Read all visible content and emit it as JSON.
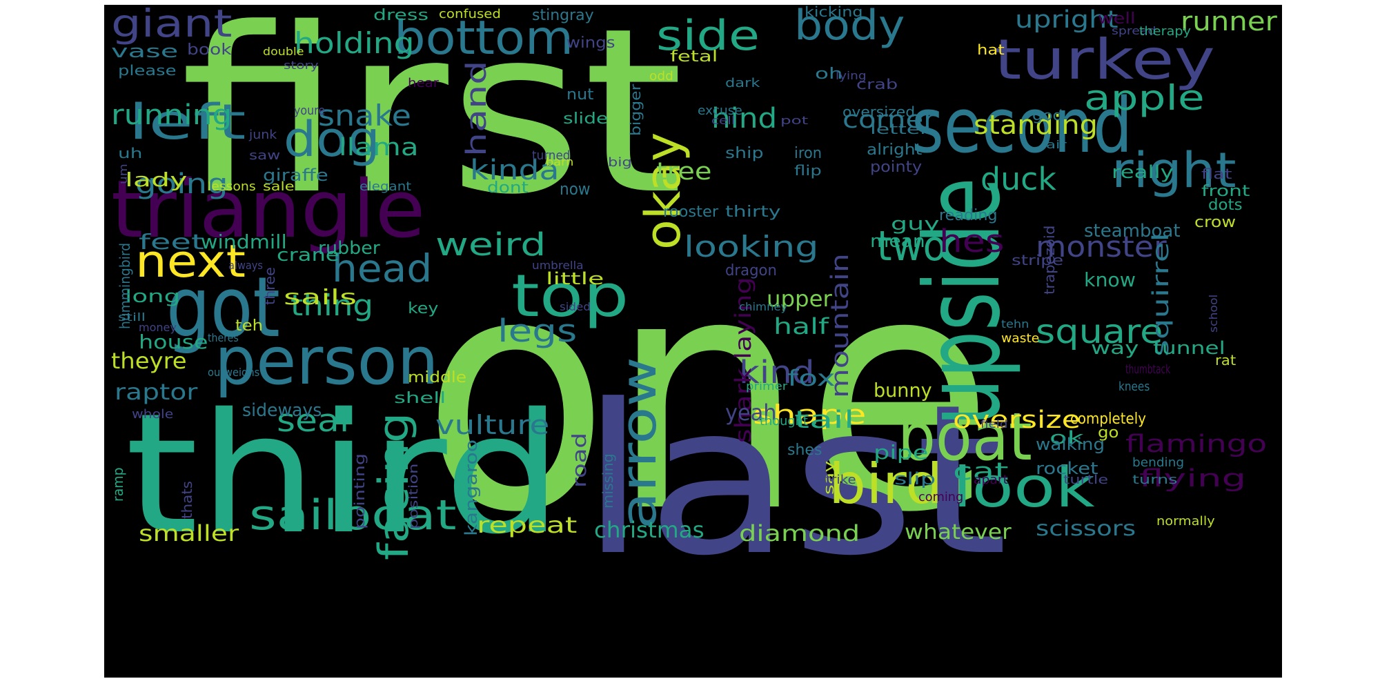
{
  "image": {
    "background_color": "#000000",
    "palette": "viridis"
  },
  "words": [
    {
      "text": "first",
      "color": "#7ad151"
    },
    {
      "text": "one",
      "color": "#7ad151"
    },
    {
      "text": "third",
      "color": "#22a884"
    },
    {
      "text": "last",
      "color": "#414487"
    },
    {
      "text": "triangle",
      "color": "#440154"
    },
    {
      "text": "second",
      "color": "#2a788e"
    },
    {
      "text": "turkey",
      "color": "#414487"
    },
    {
      "text": "got",
      "color": "#2a788e"
    },
    {
      "text": "person",
      "color": "#2a788e"
    },
    {
      "text": "upside",
      "color": "#22a884"
    },
    {
      "text": "boat",
      "color": "#7ad151"
    },
    {
      "text": "look",
      "color": "#22a884"
    },
    {
      "text": "bird",
      "color": "#bddf26"
    },
    {
      "text": "arrow",
      "color": "#2a788e"
    },
    {
      "text": "top",
      "color": "#22a884"
    },
    {
      "text": "bottom",
      "color": "#2a788e"
    },
    {
      "text": "side",
      "color": "#22a884"
    },
    {
      "text": "body",
      "color": "#2a788e"
    },
    {
      "text": "giant",
      "color": "#414487"
    },
    {
      "text": "left",
      "color": "#2a788e"
    },
    {
      "text": "dog",
      "color": "#2a788e"
    },
    {
      "text": "right",
      "color": "#2a788e"
    },
    {
      "text": "next",
      "color": "#fde725"
    },
    {
      "text": "okay",
      "color": "#bddf26"
    },
    {
      "text": "head",
      "color": "#2a788e"
    },
    {
      "text": "two",
      "color": "#22a884"
    },
    {
      "text": "sailboat",
      "color": "#22a884"
    },
    {
      "text": "facing",
      "color": "#22a884"
    },
    {
      "text": "weird",
      "color": "#22a884"
    },
    {
      "text": "apple",
      "color": "#22a884"
    },
    {
      "text": "holding",
      "color": "#22a884"
    },
    {
      "text": "square",
      "color": "#22a884"
    },
    {
      "text": "snake",
      "color": "#2a788e"
    },
    {
      "text": "hand",
      "color": "#414487"
    },
    {
      "text": "kinda",
      "color": "#2a788e"
    },
    {
      "text": "looking",
      "color": "#2a788e"
    },
    {
      "text": "monster",
      "color": "#414487"
    },
    {
      "text": "hes",
      "color": "#440154"
    },
    {
      "text": "duck",
      "color": "#22a884"
    },
    {
      "text": "legs",
      "color": "#2a788e"
    },
    {
      "text": "kind",
      "color": "#414487"
    },
    {
      "text": "seal",
      "color": "#22a884"
    },
    {
      "text": "thing",
      "color": "#22a884"
    },
    {
      "text": "running",
      "color": "#22a884"
    },
    {
      "text": "going",
      "color": "#2a788e"
    },
    {
      "text": "standing",
      "color": "#bddf26"
    },
    {
      "text": "runner",
      "color": "#7ad151"
    },
    {
      "text": "upright",
      "color": "#2a788e"
    },
    {
      "text": "hind",
      "color": "#22a884"
    },
    {
      "text": "corner",
      "color": "#2a788e"
    },
    {
      "text": "tree",
      "color": "#7ad151"
    },
    {
      "text": "llama",
      "color": "#22a884"
    },
    {
      "text": "shape",
      "color": "#fde725"
    },
    {
      "text": "tail",
      "color": "#22a884"
    },
    {
      "text": "oversize",
      "color": "#fde725"
    },
    {
      "text": "flamingo",
      "color": "#440154"
    },
    {
      "text": "vulture",
      "color": "#2a788e"
    },
    {
      "text": "cat",
      "color": "#22a884"
    },
    {
      "text": "flying",
      "color": "#440154"
    },
    {
      "text": "diamond",
      "color": "#7ad151"
    },
    {
      "text": "smaller",
      "color": "#bddf26"
    },
    {
      "text": "repeat",
      "color": "#bddf26"
    },
    {
      "text": "christmas",
      "color": "#22a884"
    },
    {
      "text": "whatever",
      "color": "#7ad151"
    },
    {
      "text": "scissors",
      "color": "#2a788e"
    },
    {
      "text": "mountain",
      "color": "#414487"
    },
    {
      "text": "shark laying",
      "color": "#440154"
    },
    {
      "text": "squirrel",
      "color": "#2a788e"
    },
    {
      "text": "fox",
      "color": "#2a788e"
    },
    {
      "text": "half",
      "color": "#22a884"
    },
    {
      "text": "upper",
      "color": "#7ad151"
    },
    {
      "text": "raptor",
      "color": "#2a788e"
    },
    {
      "text": "theyre",
      "color": "#bddf26"
    },
    {
      "text": "house",
      "color": "#22a884"
    },
    {
      "text": "sideways",
      "color": "#2a788e"
    },
    {
      "text": "sails",
      "color": "#bddf26"
    },
    {
      "text": "feet",
      "color": "#2a788e"
    },
    {
      "text": "windmill",
      "color": "#22a884"
    },
    {
      "text": "crane",
      "color": "#22a884"
    },
    {
      "text": "rubber",
      "color": "#22a884"
    },
    {
      "text": "long",
      "color": "#22a884"
    },
    {
      "text": "lady",
      "color": "#bddf26"
    },
    {
      "text": "giraffe",
      "color": "#2a788e"
    },
    {
      "text": "yeah",
      "color": "#414487"
    },
    {
      "text": "bunny",
      "color": "#bddf26"
    },
    {
      "text": "know",
      "color": "#22a884"
    },
    {
      "text": "way",
      "color": "#22a884"
    },
    {
      "text": "tunnel",
      "color": "#22a884"
    },
    {
      "text": "mean",
      "color": "#22a884"
    },
    {
      "text": "guy",
      "color": "#22a884"
    },
    {
      "text": "steamboat",
      "color": "#2a788e"
    },
    {
      "text": "really",
      "color": "#22a884"
    },
    {
      "text": "ok",
      "color": "#22a884"
    },
    {
      "text": "pipe",
      "color": "#22a884"
    },
    {
      "text": "walking",
      "color": "#2a788e"
    },
    {
      "text": "rocket",
      "color": "#2a788e"
    },
    {
      "text": "slip",
      "color": "#2a788e"
    },
    {
      "text": "road",
      "color": "#414487"
    },
    {
      "text": "kangaroo",
      "color": "#2a788e"
    },
    {
      "text": "dont",
      "color": "#22a884"
    },
    {
      "text": "now",
      "color": "#2a788e"
    },
    {
      "text": "little",
      "color": "#bddf26"
    },
    {
      "text": "middle",
      "color": "#bddf26"
    },
    {
      "text": "shell",
      "color": "#22a884"
    },
    {
      "text": "key",
      "color": "#22a884"
    },
    {
      "text": "teh",
      "color": "#bddf26"
    },
    {
      "text": "vase",
      "color": "#2a788e"
    },
    {
      "text": "book",
      "color": "#414487"
    },
    {
      "text": "please",
      "color": "#2a788e"
    },
    {
      "text": "dress",
      "color": "#22a884"
    },
    {
      "text": "stingray",
      "color": "#2a788e"
    },
    {
      "text": "kicking",
      "color": "#2a788e"
    },
    {
      "text": "confused",
      "color": "#bddf26"
    },
    {
      "text": "well",
      "color": "#440154"
    },
    {
      "text": "spread",
      "color": "#414487"
    },
    {
      "text": "therapy",
      "color": "#22a884"
    },
    {
      "text": "hat",
      "color": "#fde725"
    },
    {
      "text": "double",
      "color": "#bddf26"
    },
    {
      "text": "story",
      "color": "#414487"
    },
    {
      "text": "wings",
      "color": "#414487"
    },
    {
      "text": "fetal",
      "color": "#bddf26"
    },
    {
      "text": "oh",
      "color": "#2a788e"
    },
    {
      "text": "lying",
      "color": "#414487"
    },
    {
      "text": "odd",
      "color": "#bddf26"
    },
    {
      "text": "hear",
      "color": "#440154"
    },
    {
      "text": "nut",
      "color": "#2a788e"
    },
    {
      "text": "crab",
      "color": "#414487"
    },
    {
      "text": "dark",
      "color": "#2a788e"
    },
    {
      "text": "oversized",
      "color": "#2a788e"
    },
    {
      "text": "youre",
      "color": "#414487"
    },
    {
      "text": "slide",
      "color": "#22a884"
    },
    {
      "text": "bigger",
      "color": "#2a788e"
    },
    {
      "text": "excuse",
      "color": "#2a788e"
    },
    {
      "text": "cell",
      "color": "#414487"
    },
    {
      "text": "pot",
      "color": "#414487"
    },
    {
      "text": "god",
      "color": "#2a788e"
    },
    {
      "text": "letter",
      "color": "#2a788e"
    },
    {
      "text": "junk",
      "color": "#414487"
    },
    {
      "text": "alright",
      "color": "#2a788e"
    },
    {
      "text": "air",
      "color": "#2a788e"
    },
    {
      "text": "saw",
      "color": "#414487"
    },
    {
      "text": "turned",
      "color": "#414487"
    },
    {
      "text": "iron",
      "color": "#2a788e"
    },
    {
      "text": "ship",
      "color": "#2a788e"
    },
    {
      "text": "pointy",
      "color": "#414487"
    },
    {
      "text": "um",
      "color": "#414487"
    },
    {
      "text": "uh",
      "color": "#2a788e"
    },
    {
      "text": "barn",
      "color": "#bddf26"
    },
    {
      "text": "big",
      "color": "#414487"
    },
    {
      "text": "flip",
      "color": "#2a788e"
    },
    {
      "text": "flat",
      "color": "#414487"
    },
    {
      "text": "front",
      "color": "#22a884"
    },
    {
      "text": "lessons",
      "color": "#bddf26"
    },
    {
      "text": "sale",
      "color": "#bddf26"
    },
    {
      "text": "elegant",
      "color": "#2a788e"
    },
    {
      "text": "rooster",
      "color": "#2a788e"
    },
    {
      "text": "thirty",
      "color": "#2a788e"
    },
    {
      "text": "reading",
      "color": "#2a788e"
    },
    {
      "text": "dots",
      "color": "#22a884"
    },
    {
      "text": "crow",
      "color": "#bddf26"
    },
    {
      "text": "hummingbird",
      "color": "#2a788e"
    },
    {
      "text": "always",
      "color": "#414487"
    },
    {
      "text": "three",
      "color": "#414487"
    },
    {
      "text": "umbrella",
      "color": "#414487"
    },
    {
      "text": "dragon",
      "color": "#414487"
    },
    {
      "text": "stripe",
      "color": "#414487"
    },
    {
      "text": "trapezoid",
      "color": "#414487"
    },
    {
      "text": "chimney",
      "color": "#2a788e"
    },
    {
      "text": "still",
      "color": "#2a788e"
    },
    {
      "text": "money",
      "color": "#414487"
    },
    {
      "text": "theres",
      "color": "#2a788e"
    },
    {
      "text": "school",
      "color": "#414487"
    },
    {
      "text": "sided",
      "color": "#414487"
    },
    {
      "text": "tehn",
      "color": "#2a788e"
    },
    {
      "text": "waste",
      "color": "#fde725"
    },
    {
      "text": "rat",
      "color": "#bddf26"
    },
    {
      "text": "thumbtack",
      "color": "#440154"
    },
    {
      "text": "outweighs",
      "color": "#2a788e"
    },
    {
      "text": "knees",
      "color": "#2a788e"
    },
    {
      "text": "primer",
      "color": "#22a884"
    },
    {
      "text": "whole",
      "color": "#414487"
    },
    {
      "text": "thought",
      "color": "#22a884"
    },
    {
      "text": "completely",
      "color": "#fde725"
    },
    {
      "text": "field",
      "color": "#414487"
    },
    {
      "text": "go",
      "color": "#bddf26"
    },
    {
      "text": "shes",
      "color": "#2a788e"
    },
    {
      "text": "say",
      "color": "#bddf26"
    },
    {
      "text": "missing",
      "color": "#2a788e"
    },
    {
      "text": "pointing",
      "color": "#414487"
    },
    {
      "text": "position",
      "color": "#414487"
    },
    {
      "text": "thats",
      "color": "#414487"
    },
    {
      "text": "ramp",
      "color": "#22a884"
    },
    {
      "text": "strike",
      "color": "#414487"
    },
    {
      "text": "apart",
      "color": "#440154"
    },
    {
      "text": "turtle",
      "color": "#414487"
    },
    {
      "text": "turns",
      "color": "#2a788e"
    },
    {
      "text": "bending",
      "color": "#2a788e"
    },
    {
      "text": "coming",
      "color": "#440154"
    },
    {
      "text": "normally",
      "color": "#bddf26"
    }
  ]
}
